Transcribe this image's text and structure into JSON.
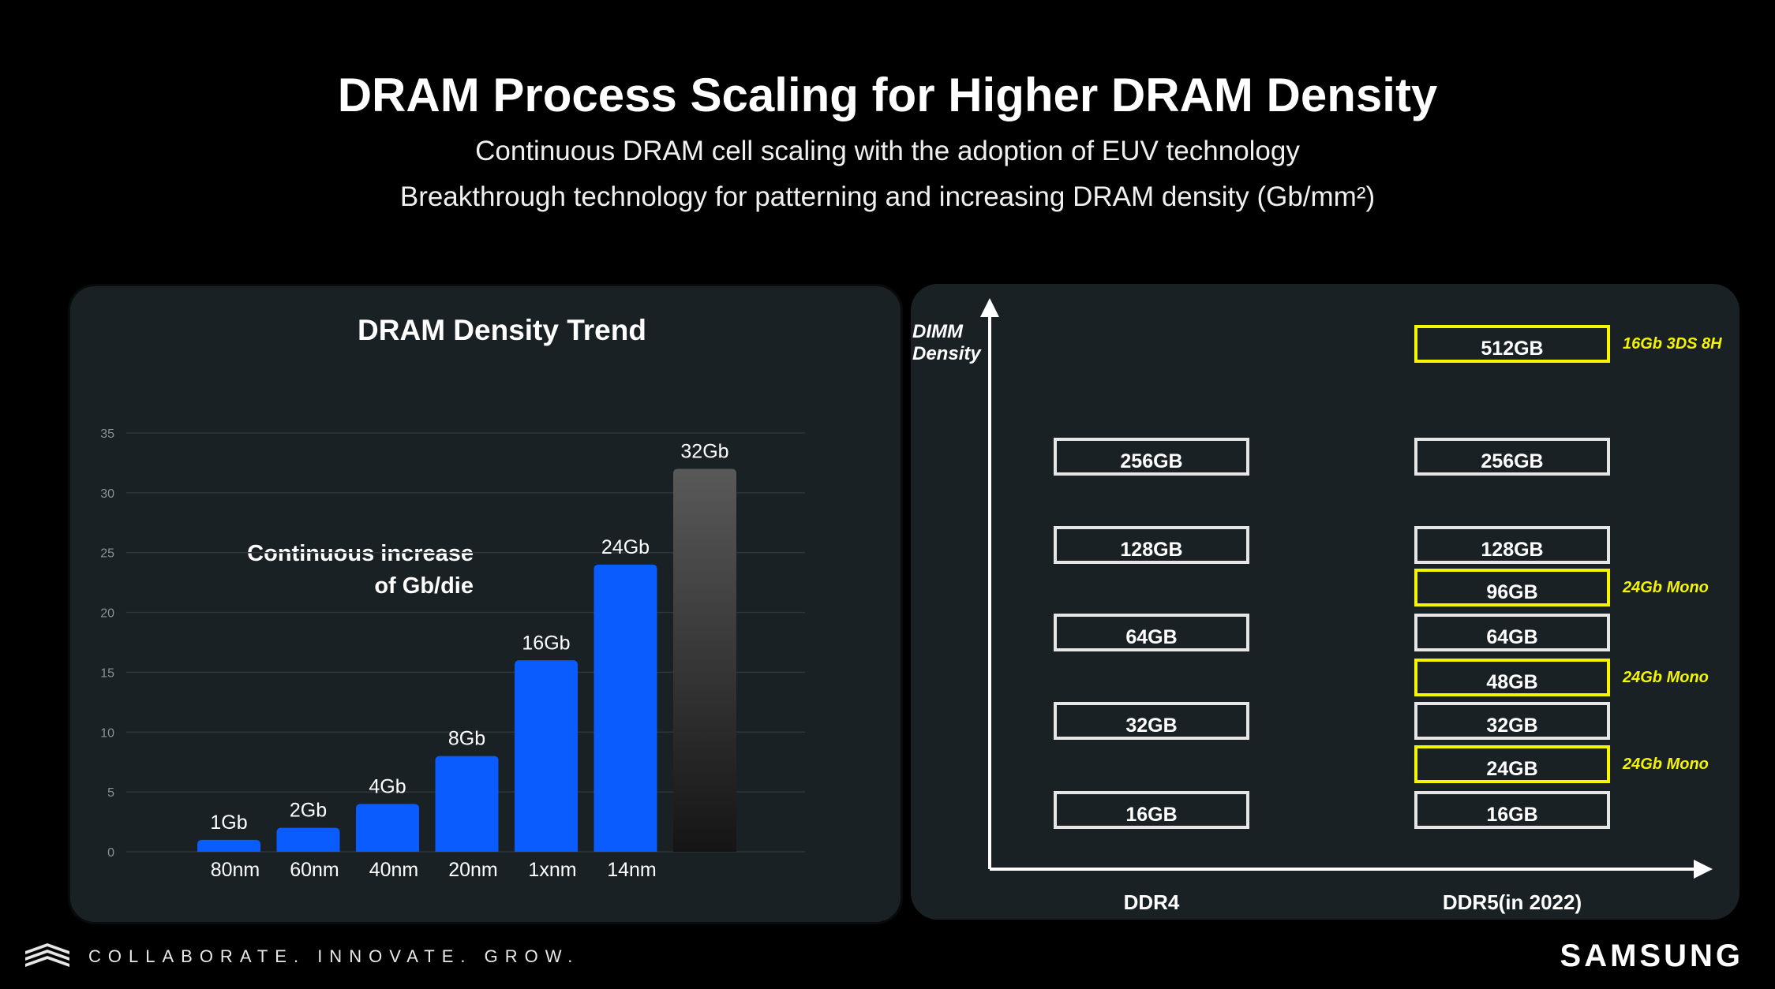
{
  "header": {
    "title": "DRAM Process Scaling for Higher DRAM Density",
    "subtitle_1": "Continuous DRAM cell scaling with the adoption of EUV technology",
    "subtitle_2": "Breakthrough technology for patterning and increasing DRAM density (Gb/mm²)"
  },
  "colors": {
    "bar": "#0b5cff",
    "bar_latest": "#3a3a3a",
    "highlight": "#f5f500",
    "outline": "#e6e6e6"
  },
  "chart_data": [
    {
      "type": "bar",
      "title": "DRAM Density Trend",
      "categories": [
        "80nm",
        "60nm",
        "40nm",
        "20nm",
        "1xnm",
        "14nm",
        ""
      ],
      "values": [
        1,
        2,
        4,
        8,
        16,
        24,
        32
      ],
      "data_labels": [
        "1Gb",
        "2Gb",
        "4Gb",
        "8Gb",
        "16Gb",
        "24Gb",
        "32Gb"
      ],
      "ylim": [
        0,
        35
      ],
      "yticks": [
        0,
        5,
        10,
        15,
        20,
        25,
        30,
        35
      ],
      "grid": true,
      "annotation": "Continuous increase of Gb/die",
      "annotation_lines": [
        "Continuous increase",
        "of Gb/die"
      ]
    },
    {
      "type": "diagram",
      "ylabel_lines": [
        "DIMM",
        "Density"
      ],
      "columns": [
        {
          "label": "DDR4",
          "items": [
            {
              "label": "256GB",
              "level": 256,
              "highlight": false
            },
            {
              "label": "128GB",
              "level": 128,
              "highlight": false
            },
            {
              "label": "64GB",
              "level": 64,
              "highlight": false
            },
            {
              "label": "32GB",
              "level": 32,
              "highlight": false
            },
            {
              "label": "16GB",
              "level": 16,
              "highlight": false
            }
          ]
        },
        {
          "label": "DDR5(in 2022)",
          "items": [
            {
              "label": "512GB",
              "level": 512,
              "highlight": true,
              "note": "16Gb 3DS 8H"
            },
            {
              "label": "256GB",
              "level": 256,
              "highlight": false
            },
            {
              "label": "128GB",
              "level": 128,
              "highlight": false
            },
            {
              "label": "96GB",
              "level": 96,
              "highlight": true,
              "note": "24Gb Mono"
            },
            {
              "label": "64GB",
              "level": 64,
              "highlight": false
            },
            {
              "label": "48GB",
              "level": 48,
              "highlight": true,
              "note": "24Gb Mono"
            },
            {
              "label": "32GB",
              "level": 32,
              "highlight": false
            },
            {
              "label": "24GB",
              "level": 24,
              "highlight": true,
              "note": "24Gb Mono"
            },
            {
              "label": "16GB",
              "level": 16,
              "highlight": false
            }
          ]
        }
      ]
    }
  ],
  "footer": {
    "tagline": "COLLABORATE. INNOVATE. GROW.",
    "brand": "SAMSUNG"
  }
}
